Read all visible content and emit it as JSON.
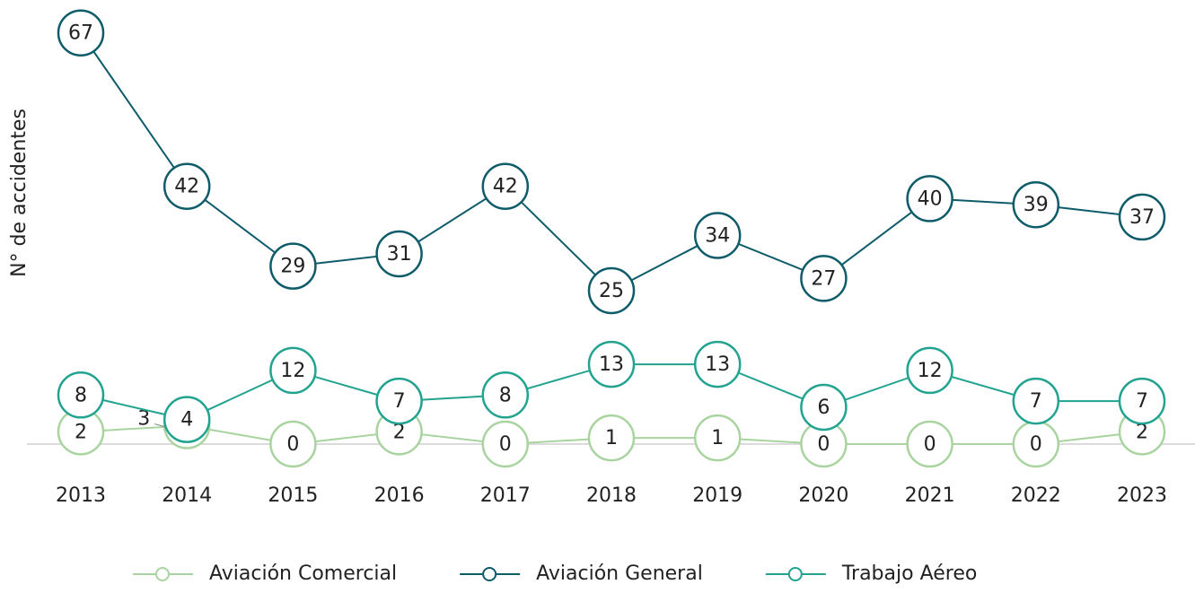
{
  "chart_data": {
    "type": "line",
    "y_label": "N° de accidentes",
    "categories": [
      "2013",
      "2014",
      "2015",
      "2016",
      "2017",
      "2018",
      "2019",
      "2020",
      "2021",
      "2022",
      "2023"
    ],
    "ylim": [
      0,
      70
    ],
    "series": [
      {
        "name": "Aviación Comercial",
        "color": "#a9d4a0",
        "values": [
          2,
          3,
          0,
          2,
          0,
          1,
          1,
          0,
          0,
          0,
          2
        ]
      },
      {
        "name": "Aviación General",
        "color": "#0e5c6a",
        "values": [
          67,
          42,
          29,
          31,
          42,
          25,
          34,
          27,
          40,
          39,
          37
        ]
      },
      {
        "name": "Trabajo Aéreo",
        "color": "#22a390",
        "values": [
          8,
          4,
          12,
          7,
          8,
          13,
          13,
          6,
          12,
          7,
          7
        ]
      }
    ],
    "legend": "bottom"
  }
}
